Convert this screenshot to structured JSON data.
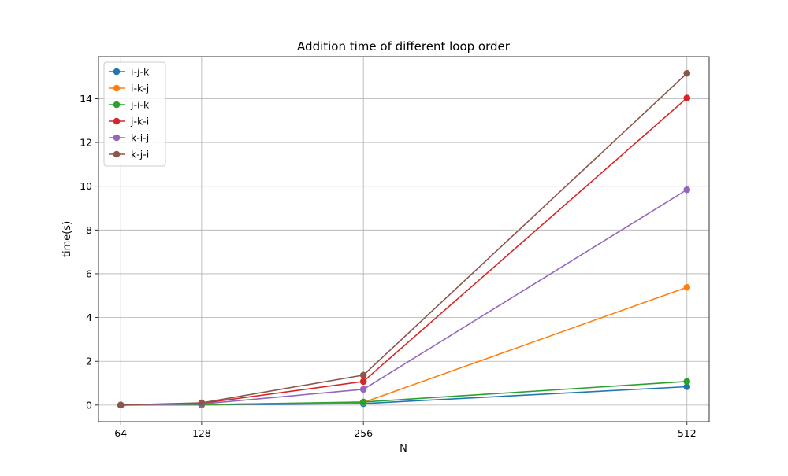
{
  "chart_data": {
    "type": "line",
    "title": "Addition time of different loop order",
    "xlabel": "N",
    "ylabel": "time(s)",
    "x": [
      64,
      128,
      256,
      512
    ],
    "xticks": [
      "64",
      "128",
      "256",
      "512"
    ],
    "xlim": [
      46.4,
      529.6
    ],
    "ylim": [
      -0.76,
      15.92
    ],
    "yticks": [
      0,
      2,
      4,
      6,
      8,
      10,
      12,
      14
    ],
    "grid": true,
    "legend_position": "top-left",
    "series": [
      {
        "name": "i-j-k",
        "color": "#1f77b4",
        "values": [
          0.0,
          0.01,
          0.07,
          0.84
        ]
      },
      {
        "name": "i-k-j",
        "color": "#ff7f0e",
        "values": [
          0.0,
          0.02,
          0.12,
          5.38
        ]
      },
      {
        "name": "j-i-k",
        "color": "#2ca02c",
        "values": [
          0.0,
          0.02,
          0.14,
          1.08
        ]
      },
      {
        "name": "j-k-i",
        "color": "#d62728",
        "values": [
          0.0,
          0.08,
          1.08,
          14.03
        ]
      },
      {
        "name": "k-i-j",
        "color": "#9467bd",
        "values": [
          0.0,
          0.05,
          0.72,
          9.84
        ]
      },
      {
        "name": "k-j-i",
        "color": "#8c564b",
        "values": [
          0.0,
          0.1,
          1.37,
          15.16
        ]
      }
    ]
  }
}
